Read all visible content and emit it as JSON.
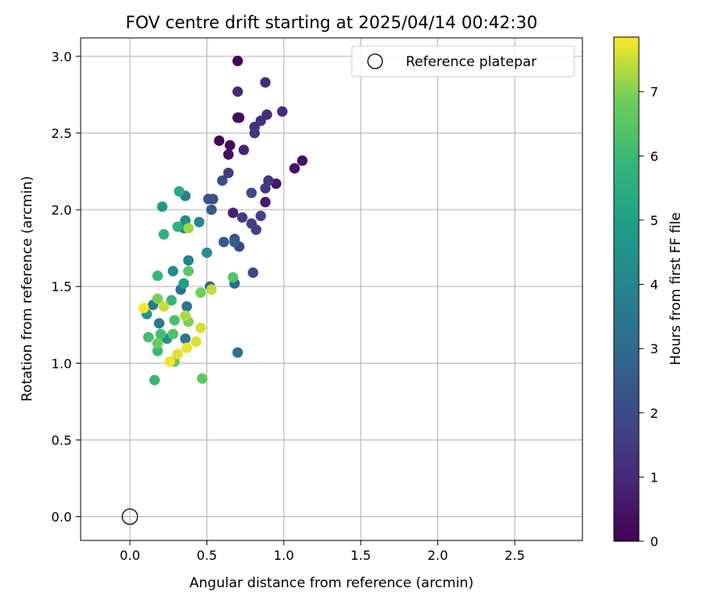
{
  "chart_data": {
    "type": "scatter",
    "title": "FOV centre drift starting at 2025/04/14 00:42:30",
    "xlabel": "Angular distance from reference (arcmin)",
    "ylabel": "Rotation from reference (arcmin)",
    "xlim": [
      -0.32,
      2.94
    ],
    "ylim": [
      -0.155,
      3.12
    ],
    "xticks": [
      0.0,
      0.5,
      1.0,
      1.5,
      2.0,
      2.5
    ],
    "xtick_labels": [
      "0.0",
      "0.5",
      "1.0",
      "1.5",
      "2.0",
      "2.5"
    ],
    "yticks": [
      0.0,
      0.5,
      1.0,
      1.5,
      2.0,
      2.5,
      3.0
    ],
    "ytick_labels": [
      "0.0",
      "0.5",
      "1.0",
      "1.5",
      "2.0",
      "2.5",
      "3.0"
    ],
    "grid": true,
    "colormap": "viridis",
    "colorbar": {
      "label": "Hours from first FF file",
      "range": [
        0,
        7.85
      ],
      "ticks": [
        0,
        1,
        2,
        3,
        4,
        5,
        6,
        7
      ],
      "tick_labels": [
        "0",
        "1",
        "2",
        "3",
        "4",
        "5",
        "6",
        "7"
      ]
    },
    "legend": {
      "position": "top-right",
      "entries": [
        "Reference platepar"
      ]
    },
    "reference_point": {
      "x": 0.0,
      "y": 0.0
    },
    "points": [
      {
        "x": 0.7,
        "y": 2.97,
        "c": 0.05
      },
      {
        "x": 0.71,
        "y": 2.6,
        "c": 0.15
      },
      {
        "x": 0.7,
        "y": 2.6,
        "c": 0.25
      },
      {
        "x": 0.58,
        "y": 2.45,
        "c": 0.1
      },
      {
        "x": 0.65,
        "y": 2.42,
        "c": 0.2
      },
      {
        "x": 0.64,
        "y": 2.36,
        "c": 0.3
      },
      {
        "x": 1.12,
        "y": 2.32,
        "c": 0.35
      },
      {
        "x": 1.07,
        "y": 2.27,
        "c": 0.45
      },
      {
        "x": 0.95,
        "y": 2.17,
        "c": 0.55
      },
      {
        "x": 0.88,
        "y": 2.05,
        "c": 0.6
      },
      {
        "x": 0.67,
        "y": 1.98,
        "c": 0.75
      },
      {
        "x": 0.74,
        "y": 2.39,
        "c": 0.85
      },
      {
        "x": 0.7,
        "y": 2.77,
        "c": 1.0
      },
      {
        "x": 0.88,
        "y": 2.83,
        "c": 1.05
      },
      {
        "x": 0.99,
        "y": 2.64,
        "c": 1.1
      },
      {
        "x": 0.89,
        "y": 2.62,
        "c": 1.15
      },
      {
        "x": 0.85,
        "y": 2.58,
        "c": 1.2
      },
      {
        "x": 0.81,
        "y": 2.54,
        "c": 1.25
      },
      {
        "x": 0.81,
        "y": 2.5,
        "c": 1.3
      },
      {
        "x": 0.9,
        "y": 2.19,
        "c": 1.4
      },
      {
        "x": 0.88,
        "y": 2.14,
        "c": 1.5
      },
      {
        "x": 0.64,
        "y": 2.24,
        "c": 1.55
      },
      {
        "x": 0.73,
        "y": 1.95,
        "c": 1.6
      },
      {
        "x": 0.79,
        "y": 1.91,
        "c": 1.7
      },
      {
        "x": 0.85,
        "y": 1.96,
        "c": 1.75
      },
      {
        "x": 0.82,
        "y": 1.87,
        "c": 1.8
      },
      {
        "x": 0.71,
        "y": 1.76,
        "c": 1.85
      },
      {
        "x": 0.68,
        "y": 1.81,
        "c": 1.95
      },
      {
        "x": 0.8,
        "y": 1.59,
        "c": 1.9
      },
      {
        "x": 0.79,
        "y": 2.11,
        "c": 2.0
      },
      {
        "x": 0.6,
        "y": 2.19,
        "c": 2.1
      },
      {
        "x": 0.51,
        "y": 2.07,
        "c": 2.15
      },
      {
        "x": 0.54,
        "y": 2.07,
        "c": 2.2
      },
      {
        "x": 0.53,
        "y": 2.0,
        "c": 2.4
      },
      {
        "x": 0.61,
        "y": 1.79,
        "c": 2.5
      },
      {
        "x": 0.68,
        "y": 1.79,
        "c": 2.6
      },
      {
        "x": 0.52,
        "y": 1.5,
        "c": 2.9
      },
      {
        "x": 0.68,
        "y": 1.52,
        "c": 3.0
      },
      {
        "x": 0.7,
        "y": 1.07,
        "c": 3.2
      },
      {
        "x": 0.33,
        "y": 1.48,
        "c": 3.3
      },
      {
        "x": 0.37,
        "y": 1.37,
        "c": 3.4
      },
      {
        "x": 0.36,
        "y": 1.16,
        "c": 3.5
      },
      {
        "x": 0.15,
        "y": 1.38,
        "c": 3.6
      },
      {
        "x": 0.19,
        "y": 1.26,
        "c": 3.7
      },
      {
        "x": 0.36,
        "y": 2.09,
        "c": 3.8
      },
      {
        "x": 0.35,
        "y": 1.88,
        "c": 3.9
      },
      {
        "x": 0.38,
        "y": 1.67,
        "c": 4.0
      },
      {
        "x": 0.45,
        "y": 1.92,
        "c": 4.1
      },
      {
        "x": 0.36,
        "y": 1.93,
        "c": 4.2
      },
      {
        "x": 0.28,
        "y": 1.6,
        "c": 4.3
      },
      {
        "x": 0.5,
        "y": 1.72,
        "c": 4.4
      },
      {
        "x": 0.24,
        "y": 1.16,
        "c": 4.5
      },
      {
        "x": 0.11,
        "y": 1.32,
        "c": 4.6
      },
      {
        "x": 0.21,
        "y": 2.02,
        "c": 4.8
      },
      {
        "x": 0.35,
        "y": 1.52,
        "c": 5.0
      },
      {
        "x": 0.32,
        "y": 2.12,
        "c": 5.4
      },
      {
        "x": 0.22,
        "y": 1.84,
        "c": 5.6
      },
      {
        "x": 0.31,
        "y": 1.89,
        "c": 5.7
      },
      {
        "x": 0.27,
        "y": 1.41,
        "c": 5.8
      },
      {
        "x": 0.18,
        "y": 1.57,
        "c": 5.9
      },
      {
        "x": 0.16,
        "y": 0.89,
        "c": 5.95
      },
      {
        "x": 0.18,
        "y": 1.08,
        "c": 6.0
      },
      {
        "x": 0.12,
        "y": 1.17,
        "c": 6.1
      },
      {
        "x": 0.2,
        "y": 1.19,
        "c": 6.2
      },
      {
        "x": 0.29,
        "y": 1.28,
        "c": 6.25
      },
      {
        "x": 0.28,
        "y": 1.19,
        "c": 6.3
      },
      {
        "x": 0.67,
        "y": 1.56,
        "c": 6.4
      },
      {
        "x": 0.38,
        "y": 1.6,
        "c": 6.5
      },
      {
        "x": 0.47,
        "y": 0.9,
        "c": 6.6
      },
      {
        "x": 0.29,
        "y": 1.01,
        "c": 6.7
      },
      {
        "x": 0.18,
        "y": 1.13,
        "c": 6.8
      },
      {
        "x": 0.46,
        "y": 1.46,
        "c": 6.85
      },
      {
        "x": 0.18,
        "y": 1.42,
        "c": 6.9
      },
      {
        "x": 0.38,
        "y": 1.27,
        "c": 6.95
      },
      {
        "x": 0.38,
        "y": 1.88,
        "c": 7.2
      },
      {
        "x": 0.36,
        "y": 1.31,
        "c": 7.3
      },
      {
        "x": 0.53,
        "y": 1.48,
        "c": 7.4
      },
      {
        "x": 0.22,
        "y": 1.37,
        "c": 7.5
      },
      {
        "x": 0.46,
        "y": 1.23,
        "c": 7.55
      },
      {
        "x": 0.43,
        "y": 1.14,
        "c": 7.6
      },
      {
        "x": 0.31,
        "y": 1.06,
        "c": 7.65
      },
      {
        "x": 0.37,
        "y": 1.1,
        "c": 7.7
      },
      {
        "x": 0.26,
        "y": 1.01,
        "c": 7.75
      },
      {
        "x": 0.09,
        "y": 1.36,
        "c": 7.8
      }
    ]
  }
}
